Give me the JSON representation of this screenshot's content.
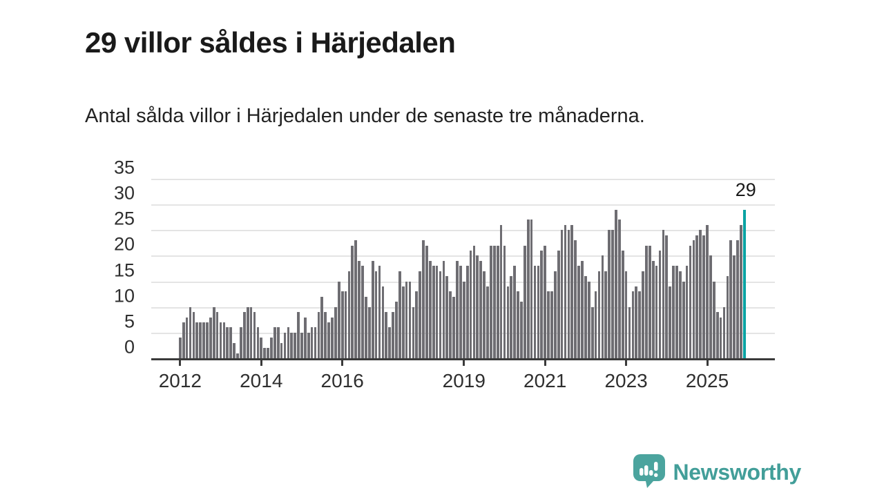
{
  "header": {
    "title": "29 villor såldes i Härjedalen",
    "subtitle": "Antal sålda villor i Härjedalen under de senaste tre månaderna."
  },
  "chart_data": {
    "type": "bar",
    "title": "29 villor såldes i Härjedalen",
    "subtitle": "Antal sålda villor i Härjedalen under de senaste tre månaderna.",
    "unit": "sålda villor (rullande 3 månader)",
    "x_start": "2012-01",
    "x_interval": "month",
    "values": [
      4,
      7,
      8,
      10,
      9,
      7,
      7,
      7,
      7,
      8,
      10,
      9,
      7,
      7,
      6,
      6,
      3,
      1,
      6,
      9,
      10,
      10,
      9,
      6,
      4,
      2,
      2,
      4,
      6,
      6,
      3,
      5,
      6,
      5,
      5,
      9,
      5,
      8,
      5,
      6,
      6,
      9,
      12,
      9,
      7,
      8,
      10,
      15,
      13,
      13,
      17,
      22,
      23,
      19,
      18,
      12,
      10,
      19,
      17,
      18,
      14,
      9,
      6,
      9,
      11,
      17,
      14,
      15,
      15,
      10,
      13,
      17,
      23,
      22,
      19,
      18,
      18,
      17,
      19,
      16,
      13,
      12,
      19,
      18,
      15,
      18,
      21,
      22,
      20,
      19,
      17,
      14,
      22,
      22,
      22,
      26,
      22,
      14,
      16,
      18,
      13,
      11,
      22,
      27,
      27,
      18,
      18,
      21,
      22,
      13,
      13,
      17,
      21,
      25,
      26,
      25,
      26,
      23,
      18,
      19,
      16,
      15,
      10,
      13,
      17,
      20,
      17,
      25,
      25,
      29,
      27,
      21,
      17,
      10,
      13,
      14,
      13,
      17,
      22,
      22,
      19,
      18,
      21,
      25,
      24,
      14,
      18,
      18,
      17,
      15,
      18,
      22,
      23,
      24,
      25,
      24,
      26,
      20,
      15,
      9,
      8,
      10,
      16,
      23,
      20,
      23,
      26,
      29
    ],
    "highlight_index": 167,
    "annotation_label": "29",
    "y_axis": {
      "ticks": [
        0,
        5,
        10,
        15,
        20,
        25,
        30,
        35
      ],
      "ylim": [
        0,
        35
      ],
      "grid": true
    },
    "x_axis": {
      "tick_labels": [
        "2012",
        "2014",
        "2016",
        "2019",
        "2021",
        "2023",
        "2025"
      ],
      "tick_indices": [
        0,
        24,
        48,
        84,
        108,
        132,
        156
      ]
    },
    "legend": "none",
    "bar_color": "#6e6d72",
    "highlight_color": "#0aa3a3"
  },
  "footer": {
    "brand": "Newsworthy",
    "brand_color": "#429e99",
    "logo_bubble_color": "#4ba49e"
  }
}
